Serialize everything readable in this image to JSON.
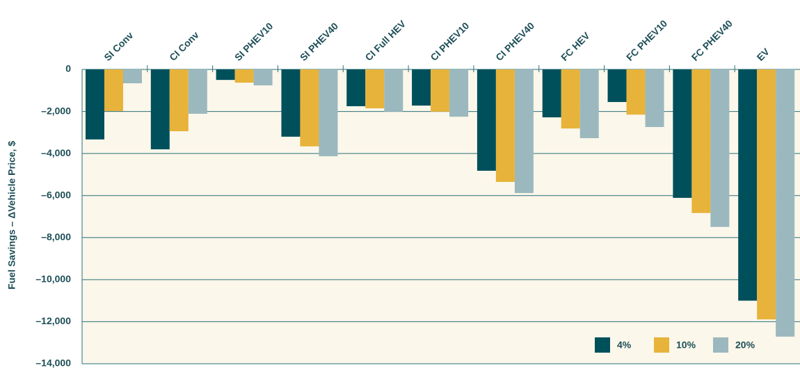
{
  "chart_data": {
    "type": "bar",
    "ylabel": "Fuel Savings – ΔVehicle Price, $",
    "categories": [
      "SI Conv",
      "CI Conv",
      "SI PHEV10",
      "SI PHEV40",
      "CI Full HEV",
      "CI PHEV10",
      "CI PHEV40",
      "FC HEV",
      "FC PHEV10",
      "FC PHEV40",
      "EV"
    ],
    "series": [
      {
        "name": "4%",
        "color": "#00505c",
        "values": [
          -3330,
          -3800,
          -500,
          -3200,
          -1750,
          -1720,
          -4820,
          -2280,
          -1550,
          -6110,
          -11000
        ]
      },
      {
        "name": "10%",
        "color": "#e8b33a",
        "values": [
          -1980,
          -2940,
          -630,
          -3660,
          -1850,
          -2010,
          -5350,
          -2810,
          -2150,
          -6830,
          -11890
        ]
      },
      {
        "name": "20%",
        "color": "#9bb8be",
        "values": [
          -660,
          -2110,
          -760,
          -4130,
          -2010,
          -2250,
          -5880,
          -3270,
          -2740,
          -7490,
          -12710
        ]
      }
    ],
    "ylim": [
      -14000,
      0
    ],
    "yticks": [
      0,
      {
        "value": -2000,
        "label": "–2,000"
      },
      {
        "value": -4000,
        "label": "–4,000"
      },
      {
        "value": -6000,
        "label": "–6,000"
      },
      {
        "value": -8000,
        "label": "–8,000"
      },
      {
        "value": -10000,
        "label": "–10,000"
      },
      {
        "value": -12000,
        "label": "–12,000"
      },
      {
        "value": -14000,
        "label": "–14,000"
      }
    ],
    "grid": true,
    "legend": "lower right"
  }
}
